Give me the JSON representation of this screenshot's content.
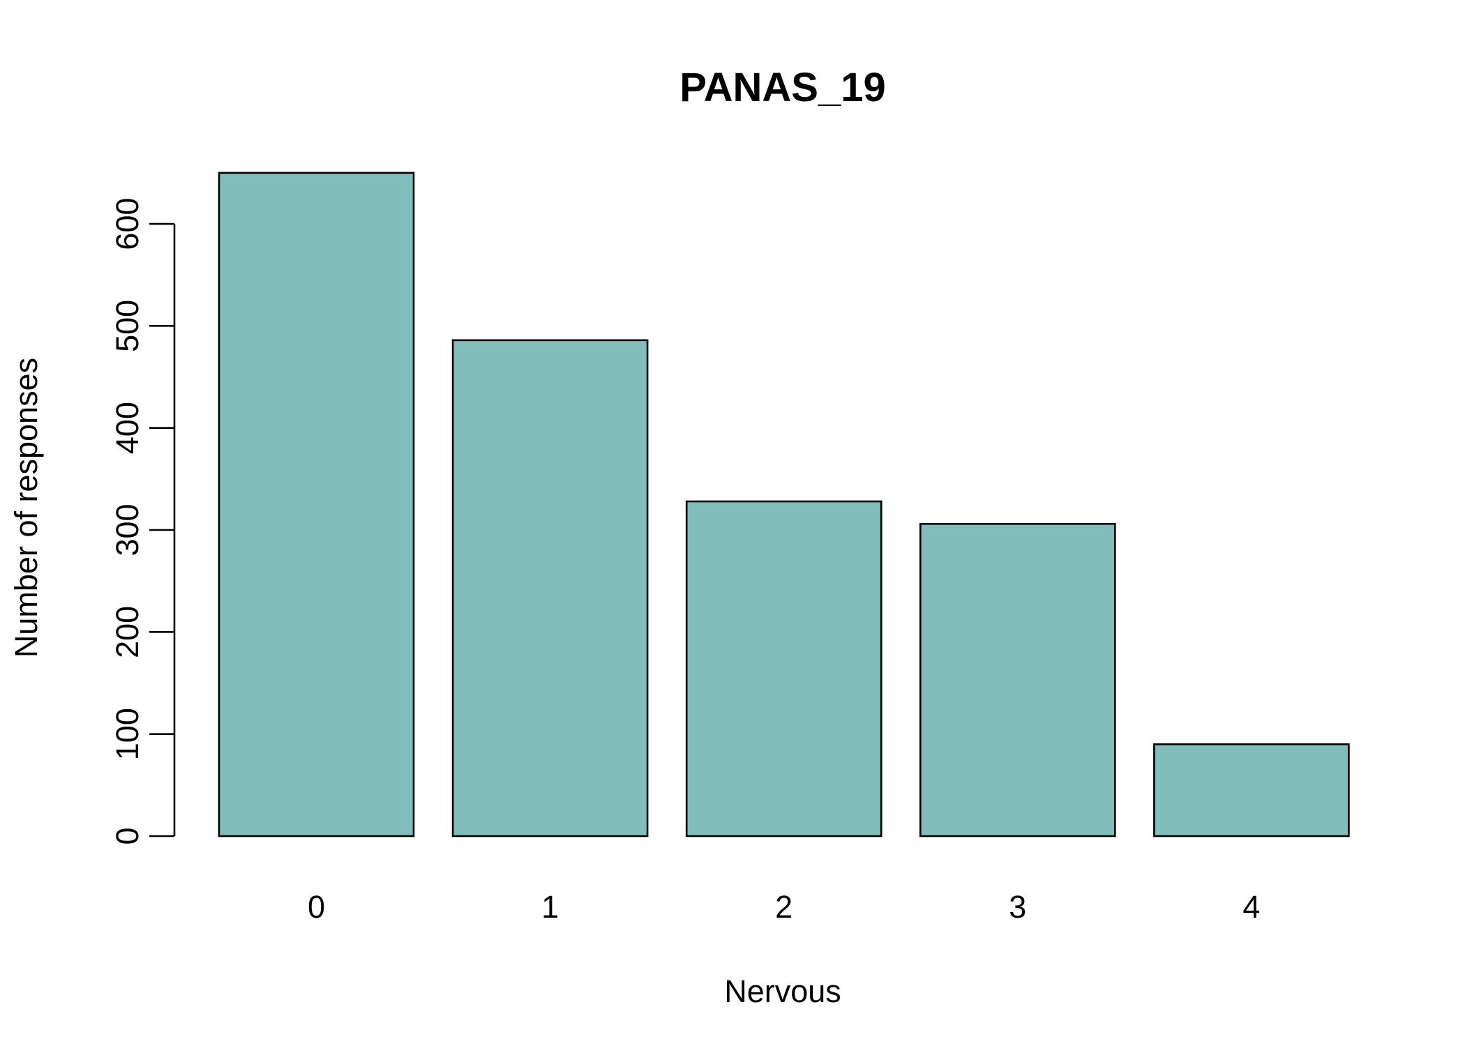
{
  "chart_data": {
    "type": "bar",
    "title": "PANAS_19",
    "xlabel": "Nervous",
    "ylabel": "Number of responses",
    "categories": [
      "0",
      "1",
      "2",
      "3",
      "4"
    ],
    "values": [
      650,
      486,
      328,
      306,
      90
    ],
    "ylim": [
      0,
      600
    ],
    "yticks": [
      "0",
      "100",
      "200",
      "300",
      "400",
      "500",
      "600"
    ],
    "bar_color": "#80BDBB",
    "grid": false,
    "legend": "none"
  }
}
